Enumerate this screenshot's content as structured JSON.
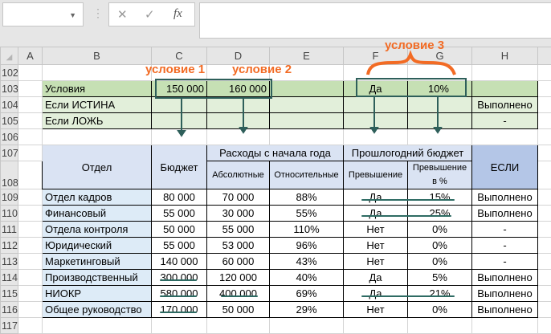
{
  "formula_bar": {
    "name_box": "",
    "cancel_icon": "✕",
    "enter_icon": "✓",
    "fx_label": "fx",
    "formula": ""
  },
  "columns": [
    "A",
    "B",
    "C",
    "D",
    "E",
    "F",
    "G",
    "H"
  ],
  "rows": [
    {
      "n": "102",
      "cells": [
        "",
        "",
        "",
        "",
        "",
        "",
        "",
        ""
      ]
    },
    {
      "n": "103",
      "cells": [
        "",
        "Условия",
        "150 000",
        "160 000",
        "",
        "Да",
        "10%",
        ""
      ]
    },
    {
      "n": "104",
      "cells": [
        "",
        "Если ИСТИНА",
        "",
        "",
        "",
        "",
        "",
        "Выполнено"
      ]
    },
    {
      "n": "105",
      "cells": [
        "",
        "Если ЛОЖЬ",
        "",
        "",
        "",
        "",
        "",
        "-"
      ]
    },
    {
      "n": "106",
      "cells": [
        "",
        "",
        "",
        "",
        "",
        "",
        "",
        ""
      ]
    },
    {
      "n": "107",
      "cells": [
        "",
        "Отдел",
        "Бюджет",
        "Расходы с начала года",
        "",
        "Прошлогодний бюджет",
        "",
        "ЕСЛИ"
      ]
    },
    {
      "n": "108",
      "cells": [
        "",
        "",
        "",
        "Абсолютные",
        "Относительные",
        "Превышение",
        "Превышение в %",
        ""
      ]
    },
    {
      "n": "109",
      "cells": [
        "",
        "Отдел кадров",
        "80 000",
        "70 000",
        "88%",
        "Да",
        "15%",
        "Выполнено"
      ]
    },
    {
      "n": "110",
      "cells": [
        "",
        "Финансовый",
        "55 000",
        "30 000",
        "55%",
        "Да",
        "25%",
        "Выполнено"
      ]
    },
    {
      "n": "111",
      "cells": [
        "",
        "Отдела контроля",
        "50 000",
        "55 000",
        "110%",
        "Нет",
        "0%",
        "-"
      ]
    },
    {
      "n": "112",
      "cells": [
        "",
        "Юридический",
        "55 000",
        "53 000",
        "96%",
        "Нет",
        "0%",
        "-"
      ]
    },
    {
      "n": "113",
      "cells": [
        "",
        "Маркетинговый",
        "140 000",
        "60 000",
        "43%",
        "Нет",
        "0%",
        "-"
      ]
    },
    {
      "n": "114",
      "cells": [
        "",
        "Производственный",
        "300 000",
        "120 000",
        "40%",
        "Да",
        "5%",
        "Выполнено"
      ]
    },
    {
      "n": "115",
      "cells": [
        "",
        "НИОКР",
        "580 000",
        "400 000",
        "69%",
        "Да",
        "21%",
        "Выполнено"
      ]
    },
    {
      "n": "116",
      "cells": [
        "",
        "Общее руководство",
        "170 000",
        "50 000",
        "29%",
        "Нет",
        "0%",
        "Выполнено"
      ]
    },
    {
      "n": "117",
      "cells": [
        "",
        "",
        "",
        "",
        "",
        "",
        "",
        ""
      ]
    }
  ],
  "annotations": {
    "cond1": "условие 1",
    "cond2": "условие 2",
    "cond3": "условие 3"
  },
  "colors": {
    "annotation": "#f26b24",
    "box": "#2e5f5a",
    "green_header": "#c6e0b4",
    "green_light": "#e2efda",
    "blue_header": "#dae3f3",
    "blue_if": "#b4c6e7",
    "blue_light": "#ddebf7"
  }
}
